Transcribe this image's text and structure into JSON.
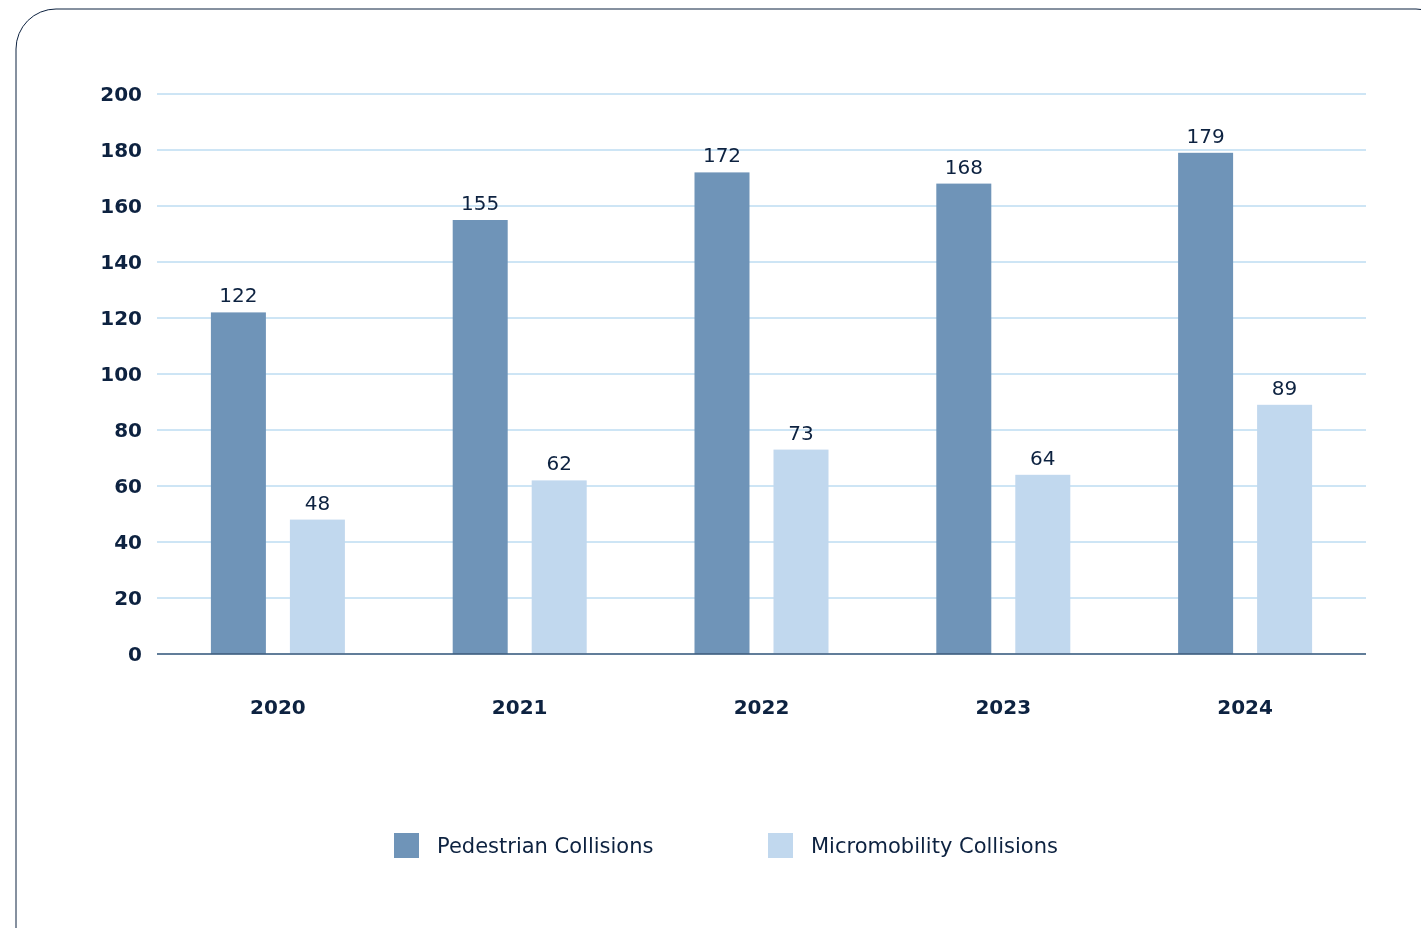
{
  "chart_data": {
    "type": "bar",
    "categories": [
      "2020",
      "2021",
      "2022",
      "2023",
      "2024"
    ],
    "series": [
      {
        "name": "Pedestrian Collisions",
        "color": "#6f94b8",
        "values": [
          122,
          155,
          172,
          168,
          179
        ]
      },
      {
        "name": "Micromobility Collisions",
        "color": "#c1d8ee",
        "values": [
          48,
          62,
          73,
          64,
          89
        ]
      }
    ],
    "ylim": [
      0,
      200
    ],
    "yticks": [
      0,
      20,
      40,
      60,
      80,
      100,
      120,
      140,
      160,
      180,
      200
    ],
    "grid": "y",
    "legend": "bottom",
    "data_labels": true
  }
}
